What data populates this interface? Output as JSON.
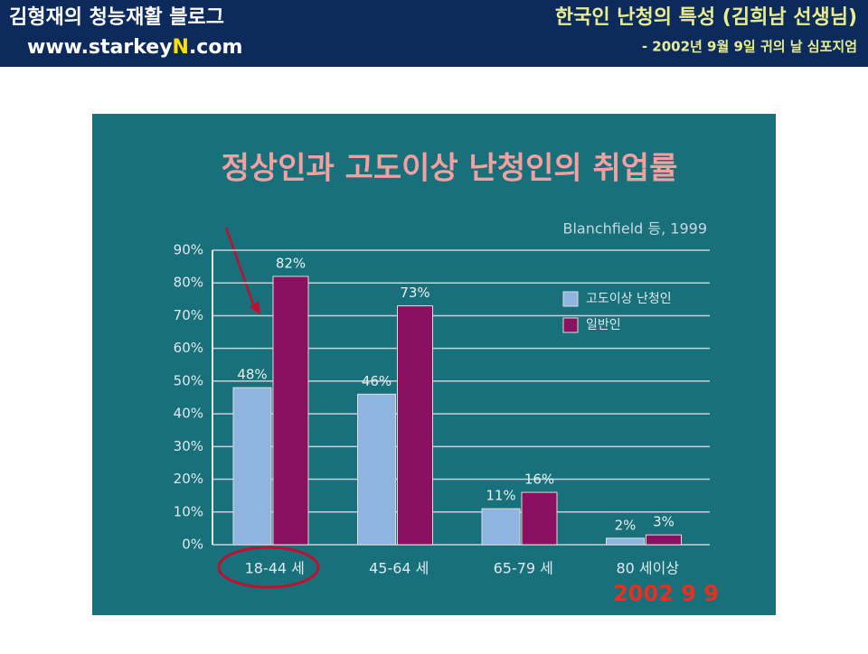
{
  "header": {
    "blog_name": "김형재의 청능재활 블로그",
    "url_parts": [
      "www.starkey",
      "N",
      ".com"
    ],
    "topic": "한국인 난청의 특성 (김희남 선생님)",
    "event": "- 2002년 9월 9일 귀의 날 심포지엄"
  },
  "chart_data": {
    "type": "bar",
    "title": "정상인과 고도이상 난청인의 취업률",
    "source": "Blanchfield 등, 1999",
    "date_stamp": "2002   9   9",
    "categories": [
      "18-44 세",
      "45-64 세",
      "65-79 세",
      "80 세이상"
    ],
    "series": [
      {
        "name": "고도이상 난청인",
        "color": "#8fb4e0",
        "values": [
          48,
          46,
          11,
          2
        ],
        "value_labels": [
          "48%",
          "46%",
          "11%",
          "2%"
        ]
      },
      {
        "name": "일반인",
        "color": "#8a1060",
        "values": [
          82,
          73,
          16,
          3
        ],
        "value_labels": [
          "82%",
          "73%",
          "16%",
          "3%"
        ]
      }
    ],
    "ylim": [
      0,
      90
    ],
    "yticks": [
      {
        "value": 0,
        "label": "0%"
      },
      {
        "value": 10,
        "label": "10%"
      },
      {
        "value": 20,
        "label": "20%"
      },
      {
        "value": 30,
        "label": "30%"
      },
      {
        "value": 40,
        "label": "40%"
      },
      {
        "value": 50,
        "label": "50%"
      },
      {
        "value": 60,
        "label": "60%"
      },
      {
        "value": 70,
        "label": "70%"
      },
      {
        "value": 80,
        "label": "80%"
      },
      {
        "value": 90,
        "label": "90%"
      }
    ],
    "grid": true,
    "legend": "upper right"
  }
}
